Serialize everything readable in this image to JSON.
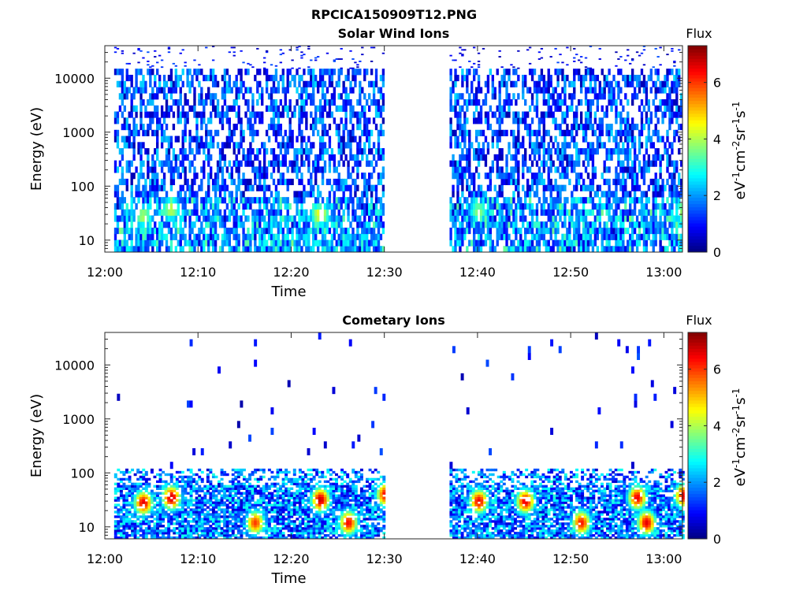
{
  "figure": {
    "title": "RPCICA150909T12.PNG"
  },
  "chart_data": [
    {
      "type": "heatmap",
      "title": "Solar Wind Ions",
      "xlabel": "Time",
      "ylabel": "Energy (eV)",
      "x_ticks": [
        "12:00",
        "12:10",
        "12:20",
        "12:30",
        "12:40",
        "12:50",
        "13:00"
      ],
      "x_range": [
        "12:00",
        "13:02"
      ],
      "y_scale": "log",
      "y_ticks": [
        10,
        100,
        1000,
        10000
      ],
      "y_range": [
        6,
        40000
      ],
      "colorbar": {
        "label": "Flux",
        "unit": "eV-1cm-2sr-1s-1",
        "ticks": [
          0,
          2,
          4,
          6
        ],
        "range": [
          0,
          7.3
        ],
        "colormap": "jet"
      },
      "data_gap": [
        "12:30",
        "12:37"
      ],
      "segments": [
        {
          "start": "12:01",
          "end": "12:30"
        },
        {
          "start": "12:37",
          "end": "13:02"
        }
      ],
      "peak_events": [
        {
          "time": "12:04",
          "energy": 28,
          "flux": 4.0
        },
        {
          "time": "12:07",
          "energy": 38,
          "flux": 4.2
        },
        {
          "time": "12:23",
          "energy": 30,
          "flux": 4.6
        },
        {
          "time": "12:40",
          "energy": 35,
          "flux": 3.8
        },
        {
          "time": "13:02",
          "energy": 35,
          "flux": 4.0
        }
      ],
      "background_flux_range": [
        0.3,
        2.5
      ],
      "max_energy_eV": 15000
    },
    {
      "type": "heatmap",
      "title": "Cometary Ions",
      "xlabel": "Time",
      "ylabel": "Energy (eV)",
      "x_ticks": [
        "12:00",
        "12:10",
        "12:20",
        "12:30",
        "12:40",
        "12:50",
        "13:00"
      ],
      "x_range": [
        "12:00",
        "13:02"
      ],
      "y_scale": "log",
      "y_ticks": [
        10,
        100,
        1000,
        10000
      ],
      "y_range": [
        6,
        40000
      ],
      "colorbar": {
        "label": "Flux",
        "unit": "eV-1cm-2sr-1s-1",
        "ticks": [
          0,
          2,
          4,
          6
        ],
        "range": [
          0,
          7.3
        ],
        "colormap": "jet"
      },
      "data_gap": [
        "12:30",
        "12:37"
      ],
      "segments": [
        {
          "start": "12:01",
          "end": "12:30"
        },
        {
          "start": "12:37",
          "end": "13:02"
        }
      ],
      "peak_events": [
        {
          "time": "12:04",
          "energy": 28,
          "flux": 6.6
        },
        {
          "time": "12:07",
          "energy": 35,
          "flux": 6.8
        },
        {
          "time": "12:16",
          "energy": 12,
          "flux": 6.0
        },
        {
          "time": "12:23",
          "energy": 32,
          "flux": 6.8
        },
        {
          "time": "12:26",
          "energy": 12,
          "flux": 6.4
        },
        {
          "time": "12:30",
          "energy": 40,
          "flux": 6.5
        },
        {
          "time": "12:40",
          "energy": 30,
          "flux": 6.5
        },
        {
          "time": "12:45",
          "energy": 30,
          "flux": 6.6
        },
        {
          "time": "12:51",
          "energy": 12,
          "flux": 6.3
        },
        {
          "time": "12:57",
          "energy": 35,
          "flux": 6.5
        },
        {
          "time": "12:58",
          "energy": 12,
          "flux": 6.6
        },
        {
          "time": "13:02",
          "energy": 38,
          "flux": 6.6
        }
      ],
      "background_flux_range": [
        0.5,
        3.0
      ],
      "max_energy_eV": 120
    }
  ]
}
